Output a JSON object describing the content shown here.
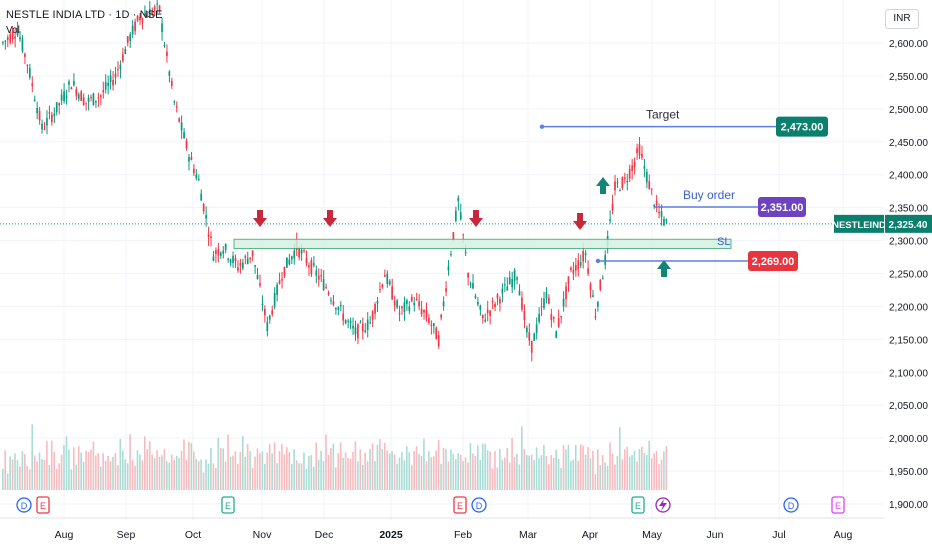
{
  "header": {
    "title": "NESTLE INDIA LTD · 1D · NSE",
    "vol_label": "Vol",
    "currency": "INR"
  },
  "chart_data": {
    "type": "candlestick",
    "symbol": "NESTLEIND",
    "last_price": "2,325.40",
    "x_ticks": [
      "Aug",
      "Sep",
      "Oct",
      "Nov",
      "Dec",
      "2025",
      "Feb",
      "Mar",
      "Apr",
      "May",
      "Jun",
      "Jul",
      "Aug"
    ],
    "y_ticks": [
      2600,
      2550,
      2500,
      2450,
      2400,
      2350,
      2300,
      2250,
      2200,
      2150,
      2100,
      2050,
      2000,
      1950,
      1900
    ],
    "y_tick_labels": [
      "2,600.00",
      "2,550.00",
      "2,500.00",
      "2,450.00",
      "2,400.00",
      "2,350.00",
      "2,300.00",
      "2,250.00",
      "2,200.00",
      "2,150.00",
      "2,100.00",
      "2,050.00",
      "2,000.00",
      "1,950.00",
      "1,900.00"
    ],
    "ylim": [
      1880,
      2640
    ],
    "price_path": [
      [
        0,
        2600
      ],
      [
        6,
        2620
      ],
      [
        10,
        2570
      ],
      [
        16,
        2470
      ],
      [
        22,
        2500
      ],
      [
        28,
        2540
      ],
      [
        34,
        2510
      ],
      [
        40,
        2520
      ],
      [
        46,
        2550
      ],
      [
        52,
        2610
      ],
      [
        56,
        2640
      ],
      [
        62,
        2650
      ],
      [
        64,
        2650
      ],
      [
        66,
        2600
      ],
      [
        70,
        2510
      ],
      [
        76,
        2430
      ],
      [
        80,
        2390
      ],
      [
        86,
        2280
      ],
      [
        90,
        2290
      ],
      [
        96,
        2260
      ],
      [
        102,
        2280
      ],
      [
        108,
        2170
      ],
      [
        114,
        2250
      ],
      [
        120,
        2290
      ],
      [
        126,
        2260
      ],
      [
        132,
        2230
      ],
      [
        140,
        2180
      ],
      [
        144,
        2160
      ],
      [
        150,
        2175
      ],
      [
        156,
        2250
      ],
      [
        162,
        2190
      ],
      [
        168,
        2210
      ],
      [
        174,
        2180
      ],
      [
        178,
        2150
      ],
      [
        182,
        2260
      ],
      [
        186,
        2360
      ],
      [
        190,
        2250
      ],
      [
        196,
        2180
      ],
      [
        202,
        2210
      ],
      [
        206,
        2230
      ],
      [
        210,
        2250
      ],
      [
        214,
        2160
      ],
      [
        216,
        2140
      ],
      [
        222,
        2220
      ],
      [
        226,
        2160
      ],
      [
        232,
        2250
      ],
      [
        238,
        2280
      ],
      [
        242,
        2190
      ],
      [
        246,
        2270
      ],
      [
        250,
        2380
      ],
      [
        254,
        2390
      ],
      [
        258,
        2420
      ],
      [
        260,
        2440
      ],
      [
        262,
        2410
      ],
      [
        266,
        2360
      ],
      [
        268,
        2340
      ],
      [
        271,
        2325
      ]
    ],
    "volume_path": [
      5,
      6,
      4,
      7,
      5,
      8,
      6,
      5,
      9,
      7,
      6,
      5,
      12,
      7,
      6,
      8,
      5,
      7,
      9,
      6,
      8,
      7,
      5,
      6,
      8,
      7,
      9,
      6,
      5,
      7,
      6,
      8,
      5,
      7,
      9,
      6,
      10,
      8,
      6,
      7
    ],
    "annotations": {
      "support_zone": [
        2288,
        2302
      ],
      "target_label": "Target",
      "target_price": "2,473.00",
      "target_value": 2473,
      "buy_label": "Buy order",
      "buy_price": "2,351.00",
      "buy_value": 2351,
      "sl_label": "SL",
      "sl_price": "2,269.00",
      "sl_value": 2269
    },
    "event_markers": [
      "D",
      "E",
      "E",
      "E",
      "D",
      "E",
      "D",
      "E"
    ],
    "colors": {
      "up": "#089981",
      "down": "#f23645",
      "target_badge": "#0a7f6e",
      "buy_badge": "#6f42c1",
      "sl_badge": "#e8343f",
      "last_badge": "#0a7f6e",
      "line": "#5b7fe6",
      "zone_fill": "#d5f0e3",
      "zone_stroke": "#3aaa6e",
      "arrow_down": "#c8283b",
      "arrow_up": "#128577",
      "grid": "#f0f3fa"
    }
  }
}
